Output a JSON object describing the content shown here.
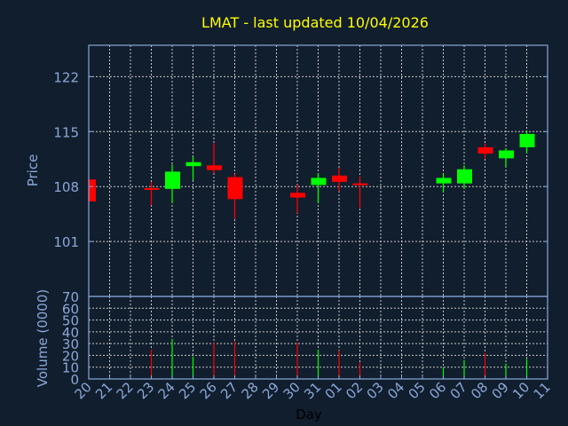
{
  "chart_data": [
    {
      "type": "candlestick",
      "title": "LMAT - last updated 10/04/2026",
      "ylabel": "Price",
      "ylim": [
        94,
        126
      ],
      "yticks": [
        101,
        108,
        115,
        122
      ],
      "grid": true,
      "colors": {
        "up": "#00ff00",
        "down": "#ff0000",
        "title": "#ffff00",
        "axis": "#8aa8d8",
        "background": "#111e2e"
      },
      "x_ticks": [
        "20",
        "21",
        "22",
        "23",
        "24",
        "25",
        "26",
        "27",
        "28",
        "29",
        "30",
        "31",
        "01",
        "02",
        "03",
        "04",
        "05",
        "06",
        "07",
        "08",
        "09",
        "10",
        "11"
      ],
      "candles": [
        {
          "day": "20",
          "open": 108.9,
          "high": 108.9,
          "low": 106.1,
          "close": 106.1
        },
        {
          "day": "23",
          "open": 107.8,
          "high": 108.6,
          "low": 105.6,
          "close": 107.6
        },
        {
          "day": "24",
          "open": 107.7,
          "high": 110.8,
          "low": 105.9,
          "close": 109.9
        },
        {
          "day": "25",
          "open": 110.6,
          "high": 111.8,
          "low": 108.8,
          "close": 111.1
        },
        {
          "day": "26",
          "open": 110.7,
          "high": 113.5,
          "low": 109.7,
          "close": 110.1
        },
        {
          "day": "27",
          "open": 109.2,
          "high": 109.6,
          "low": 103.9,
          "close": 106.4
        },
        {
          "day": "30",
          "open": 107.2,
          "high": 108.2,
          "low": 104.6,
          "close": 106.6
        },
        {
          "day": "31",
          "open": 108.2,
          "high": 109.7,
          "low": 105.9,
          "close": 109.1
        },
        {
          "day": "01",
          "open": 109.4,
          "high": 110.4,
          "low": 107.4,
          "close": 108.6
        },
        {
          "day": "02",
          "open": 108.4,
          "high": 109.3,
          "low": 105.3,
          "close": 108.2
        },
        {
          "day": "06",
          "open": 108.4,
          "high": 109.6,
          "low": 107.3,
          "close": 109.1
        },
        {
          "day": "07",
          "open": 108.4,
          "high": 110.7,
          "low": 107.7,
          "close": 110.2
        },
        {
          "day": "08",
          "open": 113.0,
          "high": 113.5,
          "low": 111.6,
          "close": 112.2
        },
        {
          "day": "09",
          "open": 111.6,
          "high": 112.9,
          "low": 110.5,
          "close": 112.6
        },
        {
          "day": "10",
          "open": 113.0,
          "high": 115.1,
          "low": 112.2,
          "close": 114.7
        }
      ]
    },
    {
      "type": "bar",
      "xlabel": "Day",
      "ylabel": "Volume (0000)",
      "ylim": [
        0,
        70
      ],
      "yticks": [
        0,
        10,
        20,
        30,
        40,
        50,
        60,
        70
      ],
      "grid": true,
      "volumes": [
        {
          "day": "23",
          "value": 25,
          "dir": "down"
        },
        {
          "day": "24",
          "value": 34,
          "dir": "up"
        },
        {
          "day": "25",
          "value": 19,
          "dir": "up"
        },
        {
          "day": "26",
          "value": 31,
          "dir": "down"
        },
        {
          "day": "27",
          "value": 32,
          "dir": "down"
        },
        {
          "day": "30",
          "value": 31,
          "dir": "down"
        },
        {
          "day": "31",
          "value": 25,
          "dir": "up"
        },
        {
          "day": "01",
          "value": 24,
          "dir": "down"
        },
        {
          "day": "02",
          "value": 14,
          "dir": "down"
        },
        {
          "day": "06",
          "value": 10,
          "dir": "up"
        },
        {
          "day": "07",
          "value": 16,
          "dir": "up"
        },
        {
          "day": "08",
          "value": 22,
          "dir": "down"
        },
        {
          "day": "09",
          "value": 13,
          "dir": "up"
        },
        {
          "day": "10",
          "value": 17,
          "dir": "up"
        }
      ]
    }
  ]
}
